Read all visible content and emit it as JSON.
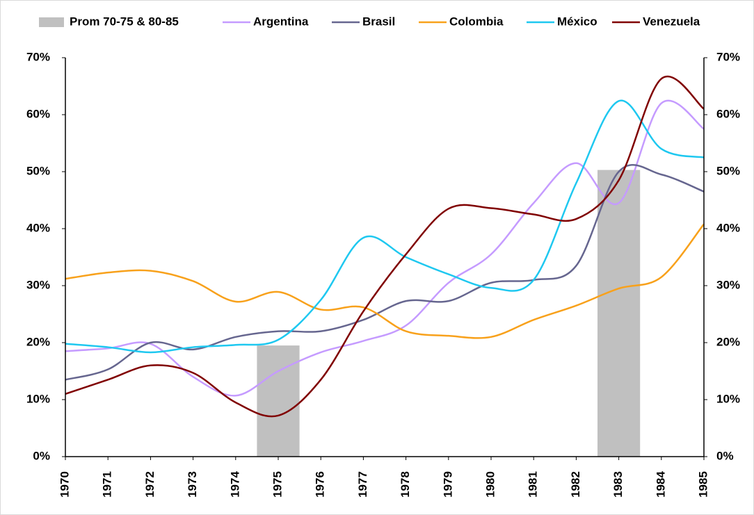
{
  "chart_data": {
    "type": "line",
    "categories": [
      "1970",
      "1971",
      "1972",
      "1973",
      "1974",
      "1975",
      "1976",
      "1977",
      "1978",
      "1979",
      "1980",
      "1981",
      "1982",
      "1983",
      "1984",
      "1985"
    ],
    "series": [
      {
        "name": "Prom 70-75 & 80-85",
        "type": "bar",
        "color": "#c0c0c0",
        "values": [
          null,
          null,
          null,
          null,
          null,
          19.5,
          null,
          null,
          null,
          null,
          null,
          null,
          null,
          50.3,
          null,
          null
        ]
      },
      {
        "name": "Argentina",
        "color": "#c59bff",
        "values": [
          18.5,
          19,
          19.8,
          14,
          10.7,
          15,
          18.3,
          20.3,
          23,
          30.5,
          35.5,
          44.5,
          51.5,
          44.5,
          62,
          57.5
        ]
      },
      {
        "name": "Brasil",
        "color": "#66668f",
        "values": [
          13.5,
          15.3,
          20,
          18.8,
          21,
          22,
          22,
          24,
          27.3,
          27.3,
          30.5,
          31,
          33.5,
          50,
          49.5,
          46.5
        ]
      },
      {
        "name": "Colombia",
        "color": "#f8a11b",
        "values": [
          31.2,
          32.3,
          32.6,
          30.8,
          27.2,
          28.9,
          25.8,
          26.2,
          22,
          21.2,
          21,
          24,
          26.5,
          29.5,
          31.5,
          40.8
        ]
      },
      {
        "name": "México",
        "color": "#1ec8f0",
        "values": [
          19.8,
          19.2,
          18.3,
          19.2,
          19.6,
          20.5,
          27.5,
          38.4,
          35,
          32,
          29.6,
          31,
          48,
          62.4,
          54,
          52.5
        ]
      },
      {
        "name": "Venezuela",
        "color": "#800000",
        "values": [
          11,
          13.5,
          16,
          14.7,
          9.5,
          7.2,
          13.5,
          25.5,
          35.5,
          43.5,
          43.6,
          42.5,
          41.7,
          48.5,
          66.3,
          61
        ]
      }
    ],
    "ylim": [
      0,
      70
    ],
    "yticks": [
      {
        "value": 0,
        "label": "0%"
      },
      {
        "value": 10,
        "label": "10%"
      },
      {
        "value": 20,
        "label": "20%"
      },
      {
        "value": 30,
        "label": "30%"
      },
      {
        "value": 40,
        "label": "40%"
      },
      {
        "value": 50,
        "label": "50%"
      },
      {
        "value": 60,
        "label": "60%"
      },
      {
        "value": 70,
        "label": "70%"
      }
    ],
    "y2lim": [
      0,
      70
    ],
    "y2ticks": [
      {
        "value": 0,
        "label": "0%"
      },
      {
        "value": 10,
        "label": "10%"
      },
      {
        "value": 20,
        "label": "20%"
      },
      {
        "value": 30,
        "label": "30%"
      },
      {
        "value": 40,
        "label": "40%"
      },
      {
        "value": 50,
        "label": "50%"
      },
      {
        "value": 60,
        "label": "60%"
      },
      {
        "value": 70,
        "label": "70%"
      }
    ],
    "legend": "top",
    "grid": false
  }
}
